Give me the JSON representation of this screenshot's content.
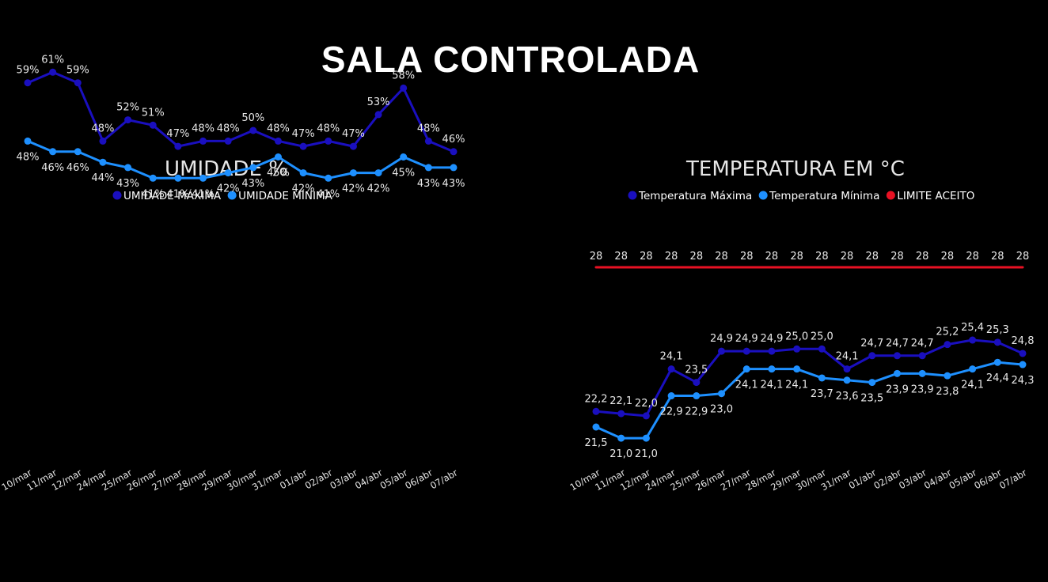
{
  "page": {
    "title": "SALA CONTROLADA"
  },
  "chart_data": [
    {
      "type": "line",
      "title": "UMIDADE %",
      "categories": [
        "10/mar",
        "11/mar",
        "12/mar",
        "24/mar",
        "25/mar",
        "26/mar",
        "27/mar",
        "28/mar",
        "29/mar",
        "30/mar",
        "31/mar",
        "01/abr",
        "02/abr",
        "03/abr",
        "04/abr",
        "05/abr",
        "06/abr",
        "07/abr"
      ],
      "ylim": [
        0,
        100
      ],
      "legend_position": "top-center",
      "grid": false,
      "series": [
        {
          "name": "UMIDADE MÁXIMA",
          "color": "#1a0fbf",
          "values": [
            59,
            61,
            59,
            48,
            52,
            51,
            47,
            48,
            48,
            50,
            48,
            47,
            48,
            47,
            53,
            58,
            48,
            46
          ],
          "labels": [
            "59%",
            "61%",
            "59%",
            "48%",
            "52%",
            "51%",
            "47%",
            "48%",
            "48%",
            "50%",
            "48%",
            "47%",
            "48%",
            "47%",
            "53%",
            "58%",
            "48%",
            "46%"
          ],
          "label_pos": "above"
        },
        {
          "name": "UMIDADE MÍNIMA",
          "color": "#1e90ff",
          "values": [
            48,
            46,
            46,
            44,
            43,
            41,
            41,
            41,
            42,
            43,
            45,
            42,
            41,
            42,
            42,
            45,
            43,
            43
          ],
          "labels": [
            "48%",
            "46%",
            "46%",
            "44%",
            "43%",
            "41%",
            "41%",
            "41%",
            "42%",
            "43%",
            "45%",
            "42%",
            "41%",
            "42%",
            "42%",
            "45%",
            "43%",
            "43%"
          ],
          "label_pos": "below"
        }
      ]
    },
    {
      "type": "line",
      "title": "TEMPERATURA EM °C",
      "categories": [
        "10/mar",
        "11/mar",
        "12/mar",
        "24/mar",
        "25/mar",
        "26/mar",
        "27/mar",
        "28/mar",
        "29/mar",
        "30/mar",
        "31/mar",
        "01/abr",
        "02/abr",
        "03/abr",
        "04/abr",
        "05/abr",
        "06/abr",
        "07/abr"
      ],
      "ylim": [
        18,
        30
      ],
      "legend_position": "top-center",
      "grid": false,
      "series": [
        {
          "name": "Temperatura Máxima",
          "color": "#1a0fbf",
          "values": [
            22.2,
            22.1,
            22.0,
            24.1,
            23.5,
            24.9,
            24.9,
            24.9,
            25.0,
            25.0,
            24.1,
            24.7,
            24.7,
            24.7,
            25.2,
            25.4,
            25.3,
            24.8
          ],
          "labels": [
            "22,2",
            "22,1",
            "22,0",
            "24,1",
            "23,5",
            "24,9",
            "24,9",
            "24,9",
            "25,0",
            "25,0",
            "24,1",
            "24,7",
            "24,7",
            "24,7",
            "25,2",
            "25,4",
            "25,3",
            "24,8"
          ],
          "label_pos": "above"
        },
        {
          "name": "Temperatura Mínima",
          "color": "#1e90ff",
          "values": [
            21.5,
            21.0,
            21.0,
            22.9,
            22.9,
            23.0,
            24.1,
            24.1,
            24.1,
            23.7,
            23.6,
            23.5,
            23.9,
            23.9,
            23.8,
            24.1,
            24.4,
            24.3
          ],
          "labels": [
            "21,5",
            "21,0",
            "21,0",
            "22,9",
            "22,9",
            "23,0",
            "24,1",
            "24,1",
            "24,1",
            "23,7",
            "23,6",
            "23,5",
            "23,9",
            "23,9",
            "23,8",
            "24,1",
            "24,4",
            "24,3"
          ],
          "label_pos": "below"
        },
        {
          "name": "LIMITE ACEITO",
          "color": "#e81123",
          "values": [
            28,
            28,
            28,
            28,
            28,
            28,
            28,
            28,
            28,
            28,
            28,
            28,
            28,
            28,
            28,
            28,
            28,
            28
          ],
          "labels": [
            "28",
            "28",
            "28",
            "28",
            "28",
            "28",
            "28",
            "28",
            "28",
            "28",
            "28",
            "28",
            "28",
            "28",
            "28",
            "28",
            "28",
            "28"
          ],
          "label_pos": "above",
          "markers": false
        }
      ]
    }
  ]
}
